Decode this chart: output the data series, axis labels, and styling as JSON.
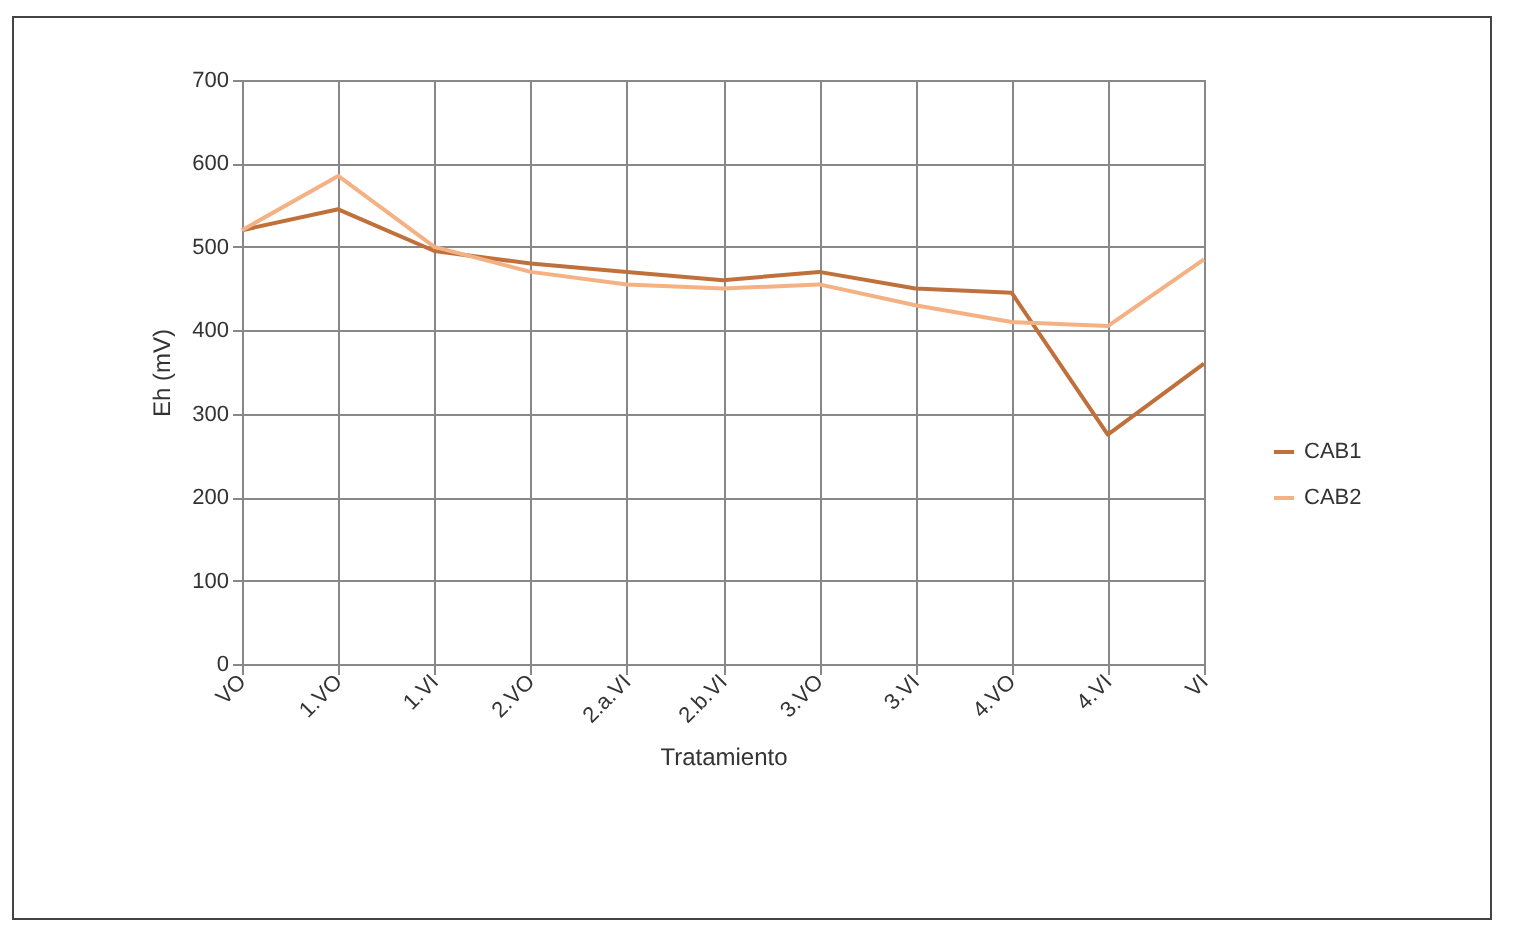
{
  "chart_data": {
    "type": "line",
    "xlabel": "Tratamiento",
    "ylabel": "Eh (mV)",
    "categories": [
      "VO",
      "1.VO",
      "1.VI",
      "2.VO",
      "2.a.VI",
      "2.b.VI",
      "3.VO",
      "3.VI",
      "4.VO",
      "4.VI",
      "VI"
    ],
    "series": [
      {
        "name": "CAB1",
        "color": "#c0703a",
        "values": [
          520,
          545,
          495,
          480,
          470,
          460,
          470,
          450,
          445,
          275,
          360
        ]
      },
      {
        "name": "CAB2",
        "color": "#f4b183",
        "values": [
          520,
          585,
          500,
          470,
          455,
          450,
          455,
          430,
          410,
          405,
          485
        ]
      }
    ],
    "ylim": [
      0,
      700
    ],
    "yticks": [
      0,
      100,
      200,
      300,
      400,
      500,
      600,
      700
    ],
    "grid": true,
    "legend": "right",
    "marker": "none",
    "line_style": "solid"
  }
}
